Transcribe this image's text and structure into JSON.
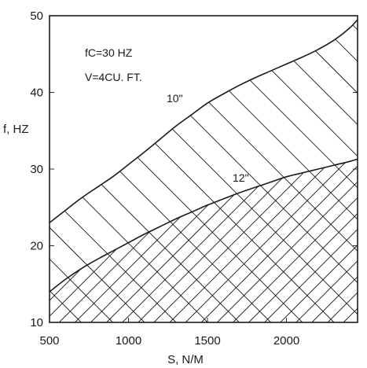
{
  "chart_data": {
    "type": "line",
    "xlabel": "S, N/M",
    "ylabel": "f, HZ",
    "xlim": [
      500,
      2450
    ],
    "ylim": [
      10,
      50
    ],
    "x_ticks": [
      500,
      1000,
      1500,
      2000
    ],
    "y_ticks": [
      10,
      20,
      30,
      40,
      50
    ],
    "grid": false,
    "annotations": [
      "fC=30 HZ",
      "V=4CU. FT."
    ],
    "series": [
      {
        "name": "10\"",
        "x": [
          500,
          600,
          700,
          800,
          900,
          1000,
          1100,
          1200,
          1300,
          1400,
          1500,
          1600,
          1700,
          1800,
          1900,
          2000,
          2100,
          2200,
          2300,
          2400,
          2450
        ],
        "y": [
          23,
          24.6,
          26.2,
          27.6,
          29.0,
          30.6,
          32.2,
          33.9,
          35.6,
          37.1,
          38.6,
          39.8,
          40.9,
          41.9,
          42.8,
          43.7,
          44.6,
          45.6,
          46.8,
          48.4,
          49.5
        ]
      },
      {
        "name": "12\"",
        "x": [
          500,
          600,
          700,
          800,
          900,
          1000,
          1100,
          1200,
          1300,
          1400,
          1500,
          1600,
          1700,
          1800,
          1900,
          2000,
          2100,
          2200,
          2300,
          2400,
          2450
        ],
        "y": [
          14,
          15.6,
          17.0,
          18.2,
          19.3,
          20.4,
          21.5,
          22.5,
          23.5,
          24.4,
          25.3,
          26.1,
          26.9,
          27.6,
          28.3,
          29.0,
          29.5,
          30.0,
          30.5,
          31.0,
          31.3
        ]
      }
    ]
  }
}
